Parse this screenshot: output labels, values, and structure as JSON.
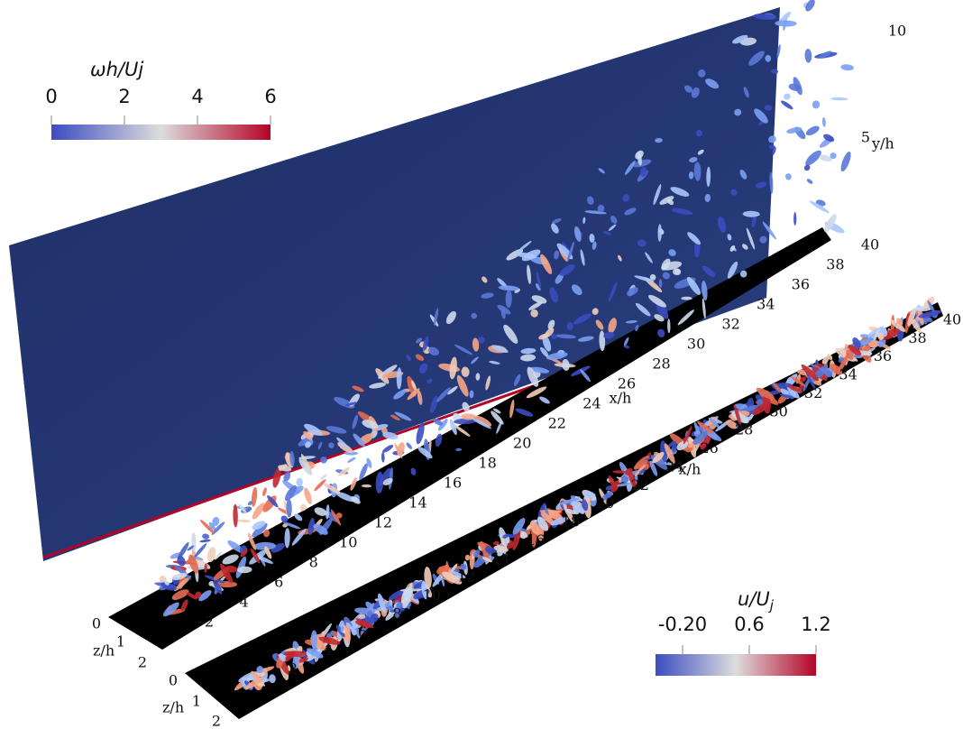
{
  "colorbars": [
    {
      "title": "ωh/Uj",
      "ticks": [
        "0",
        "2",
        "4",
        "6"
      ]
    },
    {
      "title": "u/U",
      "title_subscript": "j",
      "ticks": [
        "-0.20",
        "0.6",
        "1.2"
      ]
    }
  ],
  "upper_panel": {
    "x_label": "x/h",
    "x_ticks": [
      "2",
      "4",
      "6",
      "8",
      "10",
      "12",
      "14",
      "16",
      "18",
      "20",
      "22",
      "24",
      "26",
      "28",
      "30",
      "32",
      "34",
      "36",
      "38",
      "40"
    ],
    "y_label": "y/h",
    "y_ticks": [
      "5",
      "10"
    ],
    "z_label": "z/h",
    "z_ticks": [
      "0",
      "1",
      "2"
    ]
  },
  "lower_panel": {
    "x_label": "x/h",
    "x_ticks": [
      "2",
      "4",
      "6",
      "8",
      "10",
      "12",
      "14",
      "16",
      "18",
      "20",
      "22",
      "24",
      "26",
      "28",
      "30",
      "32",
      "34",
      "36",
      "38",
      "40"
    ],
    "z_label": "z/h",
    "z_ticks": [
      "0",
      "1",
      "2"
    ]
  }
}
